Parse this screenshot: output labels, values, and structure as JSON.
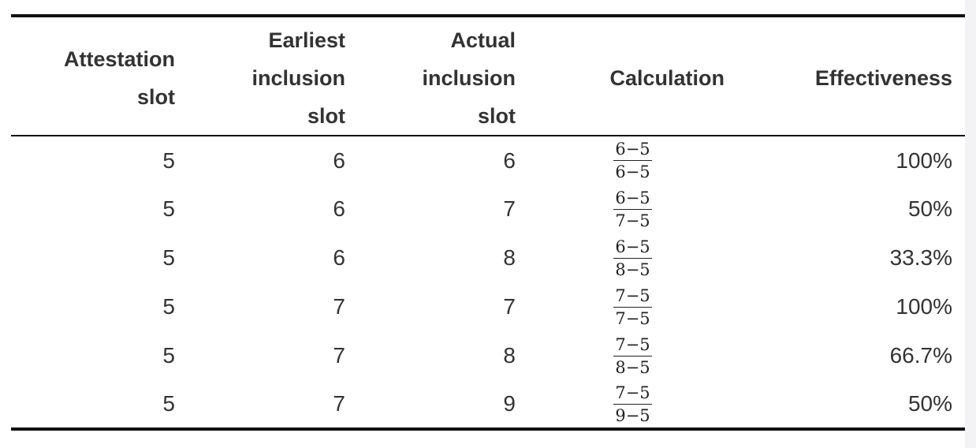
{
  "table": {
    "headers": [
      [
        "Attestation",
        "slot"
      ],
      [
        "Earliest",
        "inclusion",
        "slot"
      ],
      [
        "Actual",
        "inclusion",
        "slot"
      ],
      [
        "Calculation"
      ],
      [
        "Effectiveness"
      ]
    ],
    "rows": [
      {
        "attestation_slot": "5",
        "earliest_inclusion_slot": "6",
        "actual_inclusion_slot": "6",
        "calc_numerator": "6−5",
        "calc_denominator": "6−5",
        "effectiveness": "100%"
      },
      {
        "attestation_slot": "5",
        "earliest_inclusion_slot": "6",
        "actual_inclusion_slot": "7",
        "calc_numerator": "6−5",
        "calc_denominator": "7−5",
        "effectiveness": "50%"
      },
      {
        "attestation_slot": "5",
        "earliest_inclusion_slot": "6",
        "actual_inclusion_slot": "8",
        "calc_numerator": "6−5",
        "calc_denominator": "8−5",
        "effectiveness": "33.3%"
      },
      {
        "attestation_slot": "5",
        "earliest_inclusion_slot": "7",
        "actual_inclusion_slot": "7",
        "calc_numerator": "7−5",
        "calc_denominator": "7−5",
        "effectiveness": "100%"
      },
      {
        "attestation_slot": "5",
        "earliest_inclusion_slot": "7",
        "actual_inclusion_slot": "8",
        "calc_numerator": "7−5",
        "calc_denominator": "8−5",
        "effectiveness": "66.7%"
      },
      {
        "attestation_slot": "5",
        "earliest_inclusion_slot": "7",
        "actual_inclusion_slot": "9",
        "calc_numerator": "7−5",
        "calc_denominator": "9−5",
        "effectiveness": "50%"
      }
    ]
  }
}
